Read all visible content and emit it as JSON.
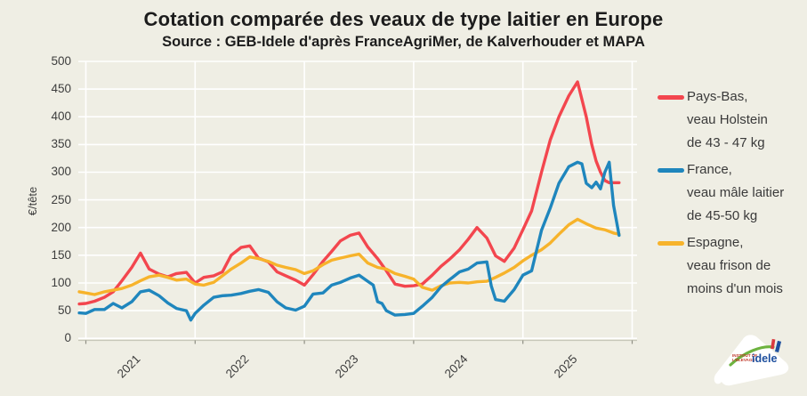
{
  "header": {
    "title": "Cotation comparée des veaux de type laitier en Europe",
    "subtitle": "Source : GEB-Idele d'après FranceAgriMer, de Kalverhouder et MAPA"
  },
  "axes": {
    "y": {
      "title": "€/tête",
      "ticks": [
        0,
        50,
        100,
        150,
        200,
        250,
        300,
        350,
        400,
        450,
        500
      ]
    },
    "x": {
      "tick_labels": [
        "2021",
        "2022",
        "2023",
        "2024",
        "2025"
      ],
      "gridline_years": [
        2021,
        2022,
        2023,
        2024,
        2025,
        2026
      ]
    }
  },
  "legend": {
    "items": [
      {
        "name": "Pays-Bas",
        "color": "#f3464e",
        "line1": "Pays-Bas,",
        "line2": "veau Holstein",
        "line3": "de 43 - 47 kg"
      },
      {
        "name": "France",
        "color": "#1f86bd",
        "line1": "France,",
        "line2": "veau mâle laitier",
        "line3": "de 45-50 kg"
      },
      {
        "name": "Espagne",
        "color": "#f7b32b",
        "line1": "Espagne,",
        "line2": "veau frison de",
        "line3": "moins d'un mois"
      }
    ]
  },
  "logo": {
    "org_small_1": "INSTITUT DE",
    "org_small_2": "L'ÉLEVAGE",
    "org_main": "idele"
  },
  "colors": {
    "background": "#efeee4",
    "gridline": "#ffffff",
    "axis_line": "#c6c6b8",
    "tick_mark": "#8f8f84",
    "pays_bas": "#f3464e",
    "france": "#1f86bd",
    "espagne": "#f7b32b"
  },
  "chart_data": {
    "type": "line",
    "title": "Cotation comparée des veaux de type laitier en Europe",
    "subtitle": "Source : GEB-Idele d'après FranceAgriMer, de Kalverhouder et MAPA",
    "xlabel": "",
    "ylabel": "€/tête",
    "ylim": [
      0,
      500
    ],
    "x_range_decimal_years": [
      2020.94,
      2025.88
    ],
    "grid": true,
    "legend_position": "right",
    "series": [
      {
        "name": "Pays-Bas",
        "label": "Pays-Bas, veau Holstein de 43 - 47 kg",
        "color": "#f3464e",
        "points": [
          [
            2020.94,
            62
          ],
          [
            2021.0,
            63
          ],
          [
            2021.08,
            67
          ],
          [
            2021.17,
            74
          ],
          [
            2021.25,
            84
          ],
          [
            2021.33,
            104
          ],
          [
            2021.42,
            128
          ],
          [
            2021.5,
            154
          ],
          [
            2021.58,
            125
          ],
          [
            2021.67,
            116
          ],
          [
            2021.75,
            111
          ],
          [
            2021.83,
            117
          ],
          [
            2021.92,
            119
          ],
          [
            2022.0,
            100
          ],
          [
            2022.08,
            110
          ],
          [
            2022.17,
            113
          ],
          [
            2022.25,
            120
          ],
          [
            2022.33,
            150
          ],
          [
            2022.42,
            164
          ],
          [
            2022.5,
            167
          ],
          [
            2022.58,
            145
          ],
          [
            2022.67,
            138
          ],
          [
            2022.75,
            120
          ],
          [
            2022.83,
            113
          ],
          [
            2022.92,
            105
          ],
          [
            2023.0,
            96
          ],
          [
            2023.08,
            115
          ],
          [
            2023.17,
            139
          ],
          [
            2023.25,
            157
          ],
          [
            2023.33,
            176
          ],
          [
            2023.42,
            186
          ],
          [
            2023.5,
            190
          ],
          [
            2023.58,
            165
          ],
          [
            2023.67,
            144
          ],
          [
            2023.75,
            122
          ],
          [
            2023.83,
            98
          ],
          [
            2023.92,
            94
          ],
          [
            2024.0,
            95
          ],
          [
            2024.08,
            98
          ],
          [
            2024.17,
            114
          ],
          [
            2024.25,
            130
          ],
          [
            2024.33,
            143
          ],
          [
            2024.42,
            160
          ],
          [
            2024.5,
            179
          ],
          [
            2024.58,
            200
          ],
          [
            2024.67,
            181
          ],
          [
            2024.75,
            149
          ],
          [
            2024.83,
            139
          ],
          [
            2024.92,
            163
          ],
          [
            2025.0,
            196
          ],
          [
            2025.08,
            230
          ],
          [
            2025.17,
            300
          ],
          [
            2025.25,
            358
          ],
          [
            2025.33,
            400
          ],
          [
            2025.42,
            438
          ],
          [
            2025.5,
            463
          ],
          [
            2025.58,
            400
          ],
          [
            2025.63,
            350
          ],
          [
            2025.67,
            320
          ],
          [
            2025.71,
            300
          ],
          [
            2025.75,
            285
          ],
          [
            2025.79,
            281
          ],
          [
            2025.88,
            281
          ]
        ]
      },
      {
        "name": "Espagne",
        "label": "Espagne, veau frison de moins d'un mois",
        "color": "#f7b32b",
        "points": [
          [
            2020.94,
            84
          ],
          [
            2021.0,
            82
          ],
          [
            2021.08,
            79
          ],
          [
            2021.17,
            84
          ],
          [
            2021.25,
            87
          ],
          [
            2021.33,
            90
          ],
          [
            2021.42,
            96
          ],
          [
            2021.5,
            104
          ],
          [
            2021.58,
            111
          ],
          [
            2021.67,
            114
          ],
          [
            2021.75,
            110
          ],
          [
            2021.83,
            105
          ],
          [
            2021.92,
            107
          ],
          [
            2022.0,
            98
          ],
          [
            2022.08,
            96
          ],
          [
            2022.17,
            101
          ],
          [
            2022.25,
            113
          ],
          [
            2022.33,
            125
          ],
          [
            2022.42,
            136
          ],
          [
            2022.5,
            147
          ],
          [
            2022.58,
            144
          ],
          [
            2022.67,
            139
          ],
          [
            2022.75,
            132
          ],
          [
            2022.83,
            128
          ],
          [
            2022.92,
            124
          ],
          [
            2023.0,
            117
          ],
          [
            2023.08,
            122
          ],
          [
            2023.17,
            133
          ],
          [
            2023.25,
            141
          ],
          [
            2023.33,
            145
          ],
          [
            2023.42,
            149
          ],
          [
            2023.5,
            152
          ],
          [
            2023.58,
            136
          ],
          [
            2023.67,
            128
          ],
          [
            2023.75,
            125
          ],
          [
            2023.83,
            117
          ],
          [
            2023.92,
            112
          ],
          [
            2024.0,
            107
          ],
          [
            2024.08,
            92
          ],
          [
            2024.17,
            87
          ],
          [
            2024.25,
            95
          ],
          [
            2024.33,
            100
          ],
          [
            2024.42,
            101
          ],
          [
            2024.5,
            100
          ],
          [
            2024.58,
            102
          ],
          [
            2024.67,
            103
          ],
          [
            2024.75,
            110
          ],
          [
            2024.83,
            118
          ],
          [
            2024.92,
            128
          ],
          [
            2025.0,
            140
          ],
          [
            2025.08,
            150
          ],
          [
            2025.17,
            160
          ],
          [
            2025.25,
            172
          ],
          [
            2025.33,
            188
          ],
          [
            2025.42,
            205
          ],
          [
            2025.5,
            215
          ],
          [
            2025.58,
            207
          ],
          [
            2025.67,
            199
          ],
          [
            2025.75,
            196
          ],
          [
            2025.83,
            190
          ],
          [
            2025.88,
            188
          ]
        ]
      },
      {
        "name": "France",
        "label": "France, veau mâle laitier de 45-50 kg",
        "color": "#1f86bd",
        "points": [
          [
            2020.94,
            46
          ],
          [
            2021.0,
            45
          ],
          [
            2021.08,
            52
          ],
          [
            2021.17,
            52
          ],
          [
            2021.25,
            63
          ],
          [
            2021.33,
            55
          ],
          [
            2021.42,
            66
          ],
          [
            2021.5,
            84
          ],
          [
            2021.58,
            87
          ],
          [
            2021.67,
            77
          ],
          [
            2021.75,
            64
          ],
          [
            2021.83,
            54
          ],
          [
            2021.92,
            50
          ],
          [
            2021.96,
            33
          ],
          [
            2022.0,
            45
          ],
          [
            2022.08,
            60
          ],
          [
            2022.17,
            74
          ],
          [
            2022.25,
            77
          ],
          [
            2022.33,
            78
          ],
          [
            2022.42,
            81
          ],
          [
            2022.5,
            85
          ],
          [
            2022.58,
            88
          ],
          [
            2022.67,
            83
          ],
          [
            2022.75,
            66
          ],
          [
            2022.83,
            55
          ],
          [
            2022.92,
            51
          ],
          [
            2023.0,
            58
          ],
          [
            2023.08,
            80
          ],
          [
            2023.17,
            82
          ],
          [
            2023.25,
            96
          ],
          [
            2023.33,
            101
          ],
          [
            2023.42,
            109
          ],
          [
            2023.5,
            114
          ],
          [
            2023.58,
            103
          ],
          [
            2023.63,
            96
          ],
          [
            2023.67,
            66
          ],
          [
            2023.71,
            63
          ],
          [
            2023.75,
            50
          ],
          [
            2023.83,
            42
          ],
          [
            2023.92,
            43
          ],
          [
            2024.0,
            45
          ],
          [
            2024.08,
            58
          ],
          [
            2024.17,
            74
          ],
          [
            2024.25,
            93
          ],
          [
            2024.33,
            106
          ],
          [
            2024.42,
            120
          ],
          [
            2024.5,
            125
          ],
          [
            2024.58,
            136
          ],
          [
            2024.67,
            138
          ],
          [
            2024.71,
            95
          ],
          [
            2024.75,
            70
          ],
          [
            2024.83,
            67
          ],
          [
            2024.92,
            88
          ],
          [
            2025.0,
            114
          ],
          [
            2025.08,
            122
          ],
          [
            2025.17,
            195
          ],
          [
            2025.25,
            235
          ],
          [
            2025.33,
            280
          ],
          [
            2025.42,
            310
          ],
          [
            2025.5,
            318
          ],
          [
            2025.54,
            315
          ],
          [
            2025.58,
            280
          ],
          [
            2025.63,
            272
          ],
          [
            2025.67,
            282
          ],
          [
            2025.71,
            270
          ],
          [
            2025.75,
            300
          ],
          [
            2025.79,
            318
          ],
          [
            2025.83,
            240
          ],
          [
            2025.88,
            186
          ]
        ]
      }
    ]
  }
}
